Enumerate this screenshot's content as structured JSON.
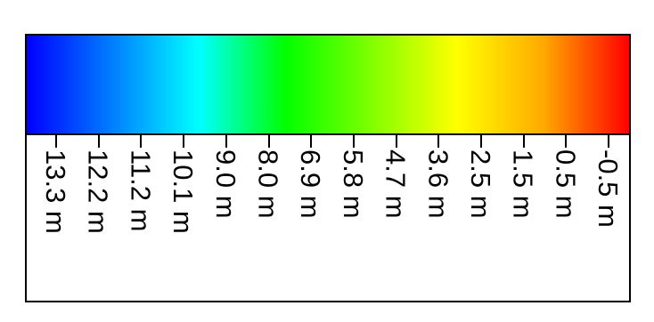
{
  "colorbar": {
    "gradient_colors": [
      "#0000ff",
      "#0080ff",
      "#00ffff",
      "#00ff00",
      "#80ff00",
      "#ffff00",
      "#ffaa00",
      "#ff0000"
    ],
    "tick_labels": [
      "13.3 m",
      "12.2 m",
      "11.2 m",
      "10.1 m",
      "9.0 m",
      "8.0 m",
      "6.9 m",
      "5.8 m",
      "4.7 m",
      "3.6 m",
      "2.5 m",
      "1.5 m",
      "0.5 m",
      "-0.5 m"
    ]
  }
}
